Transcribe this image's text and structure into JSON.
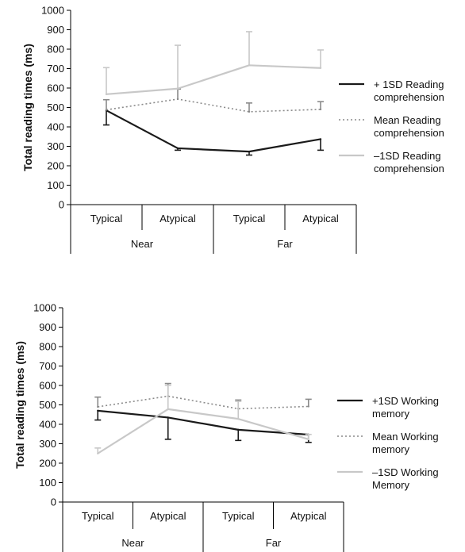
{
  "chart_data": [
    {
      "type": "line",
      "ylabel": "Total reading times (ms)",
      "ylim": [
        0,
        1000
      ],
      "yticks": [
        0,
        100,
        200,
        300,
        400,
        500,
        600,
        700,
        800,
        900,
        1000
      ],
      "categories": [
        "Typical",
        "Atypical",
        "Typical",
        "Atypical"
      ],
      "groups": [
        "Near",
        "Far"
      ],
      "series": [
        {
          "name_lines": [
            "+ 1SD Reading",
            "comprehension"
          ],
          "color": "#1a1a1a",
          "dash": "solid",
          "values": [
            485,
            290,
            273,
            337
          ],
          "error_minus": [
            75,
            10,
            18,
            57
          ]
        },
        {
          "name_lines": [
            "Mean  Reading",
            "comprehension"
          ],
          "color": "#8a8a8a",
          "dash": "dotted",
          "values": [
            488,
            543,
            478,
            490
          ],
          "error_plus": [
            52,
            52,
            45,
            40
          ]
        },
        {
          "name_lines": [
            "–1SD  Reading",
            "comprehension"
          ],
          "color": "#c8c8c8",
          "dash": "solid",
          "values": [
            568,
            597,
            717,
            703
          ],
          "error_plus": [
            137,
            223,
            173,
            93
          ]
        }
      ]
    },
    {
      "type": "line",
      "ylabel": "Total reading times (ms)",
      "ylim": [
        0,
        1000
      ],
      "yticks": [
        0,
        100,
        200,
        300,
        400,
        500,
        600,
        700,
        800,
        900,
        1000
      ],
      "categories": [
        "Typical",
        "Atypical",
        "Typical",
        "Atypical"
      ],
      "groups": [
        "Near",
        "Far"
      ],
      "series": [
        {
          "name_lines": [
            "+1SD Working",
            "memory"
          ],
          "color": "#1a1a1a",
          "dash": "solid",
          "values": [
            470,
            435,
            372,
            347
          ],
          "error_minus": [
            48,
            112,
            55,
            40
          ]
        },
        {
          "name_lines": [
            "Mean Working",
            "memory"
          ],
          "color": "#8a8a8a",
          "dash": "dotted",
          "values": [
            490,
            545,
            480,
            492
          ],
          "error_plus": [
            50,
            65,
            45,
            37
          ]
        },
        {
          "name_lines": [
            "–1SD Working",
            "Memory"
          ],
          "color": "#c8c8c8",
          "dash": "solid",
          "values": [
            250,
            478,
            428,
            323
          ],
          "error_plus": [
            28,
            123,
            90,
            25
          ]
        }
      ]
    }
  ]
}
